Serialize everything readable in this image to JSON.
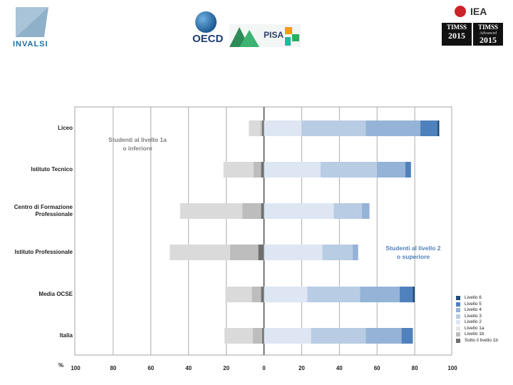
{
  "logos": {
    "invalsi": "INVALSI",
    "oecd": "OECD",
    "pisa": "PISA",
    "iea": "IEA",
    "timss1": {
      "line1": "TIMSS",
      "line2": "",
      "line3": "2015"
    },
    "timss2": {
      "line1": "TIMSS",
      "line2": "Advanced",
      "line3": "2015"
    }
  },
  "chart_data": {
    "type": "bar",
    "orientation": "horizontal-diverging",
    "categories": [
      "Liceo",
      "Istituto Tecnico",
      "Centro di Formazione Professionale",
      "Istituto Professionale",
      "Media OCSE",
      "Italia"
    ],
    "category_lines": [
      [
        "Liceo"
      ],
      [
        "Istituto Tecnico"
      ],
      [
        "Centro di Formazione",
        "Professionale"
      ],
      [
        "Istituto Professionale"
      ],
      [
        "Media OCSE"
      ],
      [
        "Italia"
      ]
    ],
    "series": [
      {
        "name": "Sotto il livello 1b",
        "side": "left",
        "color": "#6f6f6f",
        "values": [
          1,
          1.5,
          1.5,
          3,
          1.5,
          1
        ]
      },
      {
        "name": "Livello 1b",
        "side": "left",
        "color": "#bdbdbd",
        "values": [
          1,
          4,
          10,
          15,
          5,
          5
        ]
      },
      {
        "name": "Livello 1a",
        "side": "left",
        "color": "#dadada",
        "values": [
          6,
          16,
          33,
          32,
          14,
          15
        ]
      },
      {
        "name": "Livello 2",
        "side": "right",
        "color": "#dde6f2",
        "values": [
          20,
          30,
          37,
          31,
          23,
          25
        ]
      },
      {
        "name": "Livello 3",
        "side": "right",
        "color": "#b8cce4",
        "values": [
          34,
          30,
          15,
          16,
          28,
          29
        ]
      },
      {
        "name": "Livello 4",
        "side": "right",
        "color": "#95b3d7",
        "values": [
          29,
          15,
          4,
          3,
          21,
          19
        ]
      },
      {
        "name": "Livello 5",
        "side": "right",
        "color": "#4f81bd",
        "values": [
          9,
          3,
          0,
          0,
          7,
          6
        ]
      },
      {
        "name": "Livello 6",
        "side": "right",
        "color": "#1f4e79",
        "values": [
          1,
          0,
          0,
          0,
          1,
          0
        ]
      }
    ],
    "legend": [
      "Livello 6",
      "Livello 5",
      "Livello 4",
      "Livello 3",
      "Livello 2",
      "Livello 1a",
      "Livello 1b",
      "Sotto il livello 1b"
    ],
    "legend_colors": [
      "#1f4e79",
      "#4f81bd",
      "#95b3d7",
      "#b8cce4",
      "#dde6f2",
      "#e6e6e6",
      "#bdbdbd",
      "#6f6f6f"
    ],
    "x_ticks": [
      -100,
      -80,
      -60,
      -40,
      -20,
      0,
      20,
      40,
      60,
      80,
      100
    ],
    "x_tick_labels": [
      "100",
      "80",
      "60",
      "40",
      "20",
      "0",
      "20",
      "40",
      "60",
      "80",
      "100"
    ],
    "xlim": [
      -100,
      100
    ],
    "xlabel": "%",
    "annotation_left": {
      "line1": "Studenti al livello 1a",
      "line2": "o inferiore",
      "color": "#7f7f7f"
    },
    "annotation_right": {
      "line1": "Studenti al livello 2",
      "line2": "o superiore",
      "color": "#4f81bd"
    },
    "legend_position": "bottom-right"
  }
}
